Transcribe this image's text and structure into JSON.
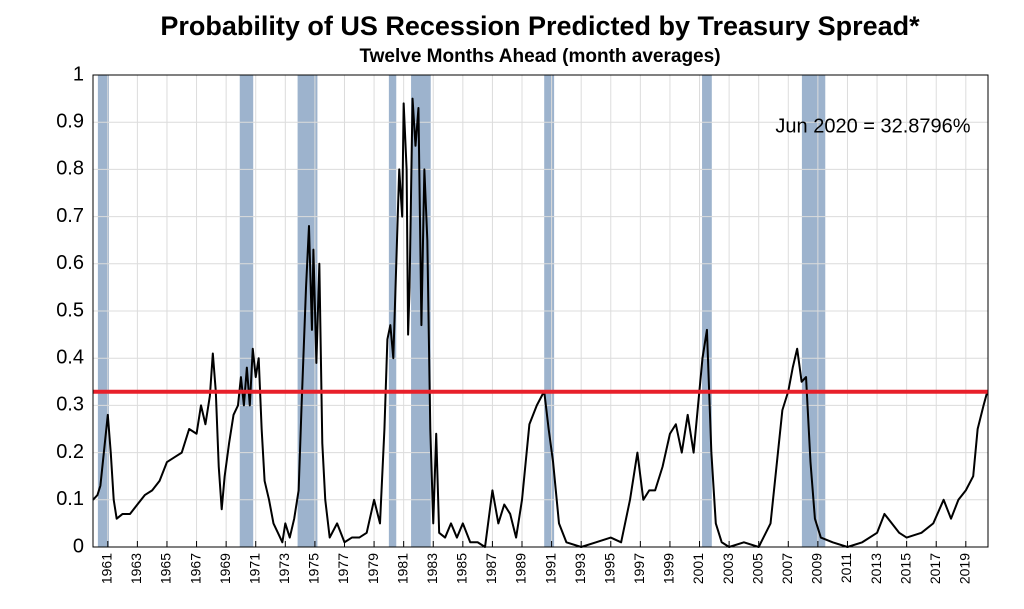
{
  "chart_data": {
    "type": "line",
    "title": "Probability of US Recession Predicted by Treasury Spread*",
    "subtitle": "Twelve Months Ahead (month averages)",
    "annotation": "Jun 2020 = 32.8796%",
    "threshold": 0.328796,
    "threshold_color": "#e8202a",
    "recession_color": "#9db3cd",
    "recessions": [
      [
        1960.33,
        1961.08
      ],
      [
        1969.92,
        1970.83
      ],
      [
        1973.83,
        1975.17
      ],
      [
        1980.0,
        1980.5
      ],
      [
        1981.5,
        1982.83
      ],
      [
        1990.5,
        1991.17
      ],
      [
        2001.17,
        2001.83
      ],
      [
        2007.92,
        2009.5
      ]
    ],
    "xlim": [
      1960,
      2020.5
    ],
    "xticks": [
      1961,
      1963,
      1965,
      1967,
      1969,
      1971,
      1973,
      1975,
      1977,
      1979,
      1981,
      1983,
      1985,
      1987,
      1989,
      1991,
      1993,
      1995,
      1997,
      1999,
      2001,
      2003,
      2005,
      2007,
      2009,
      2011,
      2013,
      2015,
      2017,
      2019
    ],
    "ylim": [
      0,
      1
    ],
    "yticks": [
      0,
      0.1,
      0.2,
      0.3,
      0.4,
      0.5,
      0.6,
      0.7,
      0.8,
      0.9,
      1
    ],
    "grid": true,
    "series": [
      {
        "color": "#000000",
        "x": [
          1960.0,
          1960.3,
          1960.5,
          1960.8,
          1961.0,
          1961.2,
          1961.4,
          1961.6,
          1962,
          1962.5,
          1963,
          1963.5,
          1964,
          1964.5,
          1965,
          1965.5,
          1966,
          1966.5,
          1967,
          1967.3,
          1967.6,
          1967.9,
          1968.1,
          1968.3,
          1968.5,
          1968.7,
          1968.9,
          1969.2,
          1969.5,
          1969.8,
          1970.0,
          1970.2,
          1970.4,
          1970.6,
          1970.8,
          1971.0,
          1971.2,
          1971.4,
          1971.6,
          1971.9,
          1972.2,
          1972.5,
          1972.8,
          1973.0,
          1973.3,
          1973.6,
          1973.9,
          1974.1,
          1974.4,
          1974.6,
          1974.8,
          1974.9,
          1975.1,
          1975.3,
          1975.5,
          1975.7,
          1976,
          1976.5,
          1977,
          1977.5,
          1978,
          1978.5,
          1979,
          1979.4,
          1979.7,
          1979.9,
          1980.1,
          1980.3,
          1980.5,
          1980.7,
          1980.9,
          1981.0,
          1981.2,
          1981.3,
          1981.4,
          1981.6,
          1981.8,
          1982.0,
          1982.2,
          1982.4,
          1982.6,
          1982.8,
          1983.0,
          1983.2,
          1983.4,
          1983.8,
          1984.2,
          1984.6,
          1985,
          1985.5,
          1986,
          1986.5,
          1987,
          1987.4,
          1987.8,
          1988.2,
          1988.6,
          1989,
          1989.5,
          1990,
          1990.5,
          1990.8,
          1991.1,
          1991.5,
          1992,
          1993,
          1994,
          1995,
          1995.7,
          1996.3,
          1996.8,
          1997.2,
          1997.6,
          1998,
          1998.5,
          1999,
          1999.4,
          1999.8,
          2000.2,
          2000.6,
          2000.9,
          2001.2,
          2001.5,
          2001.8,
          2002.1,
          2002.5,
          2003,
          2004,
          2005,
          2005.8,
          2006.3,
          2006.6,
          2007.0,
          2007.3,
          2007.6,
          2007.9,
          2008.2,
          2008.5,
          2008.8,
          2009.2,
          2010,
          2011,
          2012,
          2013,
          2013.5,
          2014,
          2014.5,
          2015,
          2016,
          2016.8,
          2017.5,
          2018,
          2018.5,
          2019,
          2019.5,
          2019.8,
          2020.2,
          2020.45
        ],
        "values": [
          0.1,
          0.11,
          0.13,
          0.22,
          0.28,
          0.2,
          0.1,
          0.06,
          0.07,
          0.07,
          0.09,
          0.11,
          0.12,
          0.14,
          0.18,
          0.19,
          0.2,
          0.25,
          0.24,
          0.3,
          0.26,
          0.32,
          0.41,
          0.33,
          0.17,
          0.08,
          0.15,
          0.22,
          0.28,
          0.3,
          0.36,
          0.3,
          0.38,
          0.3,
          0.42,
          0.36,
          0.4,
          0.25,
          0.14,
          0.1,
          0.05,
          0.03,
          0.01,
          0.05,
          0.02,
          0.06,
          0.12,
          0.3,
          0.55,
          0.68,
          0.46,
          0.63,
          0.39,
          0.6,
          0.22,
          0.1,
          0.02,
          0.05,
          0.01,
          0.02,
          0.02,
          0.03,
          0.1,
          0.05,
          0.25,
          0.44,
          0.47,
          0.4,
          0.6,
          0.8,
          0.7,
          0.94,
          0.8,
          0.45,
          0.55,
          0.95,
          0.85,
          0.93,
          0.47,
          0.8,
          0.65,
          0.25,
          0.05,
          0.24,
          0.03,
          0.02,
          0.05,
          0.02,
          0.05,
          0.01,
          0.01,
          0.0,
          0.12,
          0.05,
          0.09,
          0.07,
          0.02,
          0.1,
          0.26,
          0.3,
          0.33,
          0.25,
          0.18,
          0.05,
          0.01,
          0.0,
          0.01,
          0.02,
          0.01,
          0.1,
          0.2,
          0.1,
          0.12,
          0.12,
          0.17,
          0.24,
          0.26,
          0.2,
          0.28,
          0.2,
          0.3,
          0.4,
          0.46,
          0.2,
          0.05,
          0.01,
          0.0,
          0.01,
          0.0,
          0.05,
          0.2,
          0.29,
          0.33,
          0.38,
          0.42,
          0.35,
          0.36,
          0.18,
          0.06,
          0.02,
          0.01,
          0.0,
          0.01,
          0.03,
          0.07,
          0.05,
          0.03,
          0.02,
          0.03,
          0.05,
          0.1,
          0.06,
          0.1,
          0.12,
          0.15,
          0.25,
          0.3,
          0.328796
        ]
      }
    ]
  }
}
